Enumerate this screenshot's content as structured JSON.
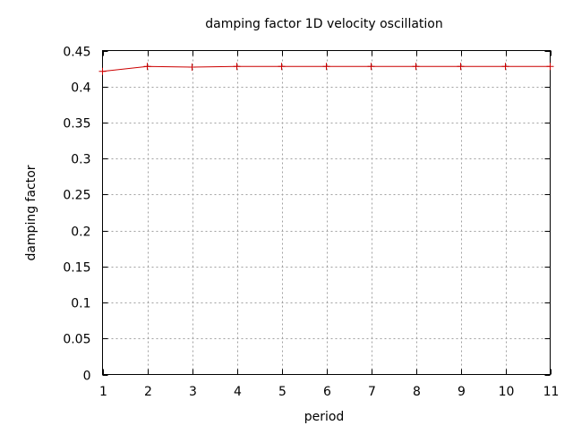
{
  "chart_data": {
    "type": "line",
    "title": "damping factor 1D velocity oscillation",
    "xlabel": "period",
    "ylabel": "damping factor",
    "xlim": [
      1,
      11
    ],
    "ylim": [
      0,
      0.45
    ],
    "x_ticks": [
      1,
      2,
      3,
      4,
      5,
      6,
      7,
      8,
      9,
      10,
      11
    ],
    "y_ticks": [
      0,
      0.05,
      0.1,
      0.15,
      0.2,
      0.25,
      0.3,
      0.35,
      0.4,
      0.45
    ],
    "grid": true,
    "series_color": "#cc0000",
    "series": [
      {
        "x": [
          1,
          2,
          3,
          4,
          5,
          6,
          7,
          8,
          9,
          10,
          11
        ],
        "values": [
          0.421,
          0.428,
          0.427,
          0.428,
          0.428,
          0.428,
          0.428,
          0.428,
          0.428,
          0.428,
          0.428
        ]
      }
    ]
  }
}
